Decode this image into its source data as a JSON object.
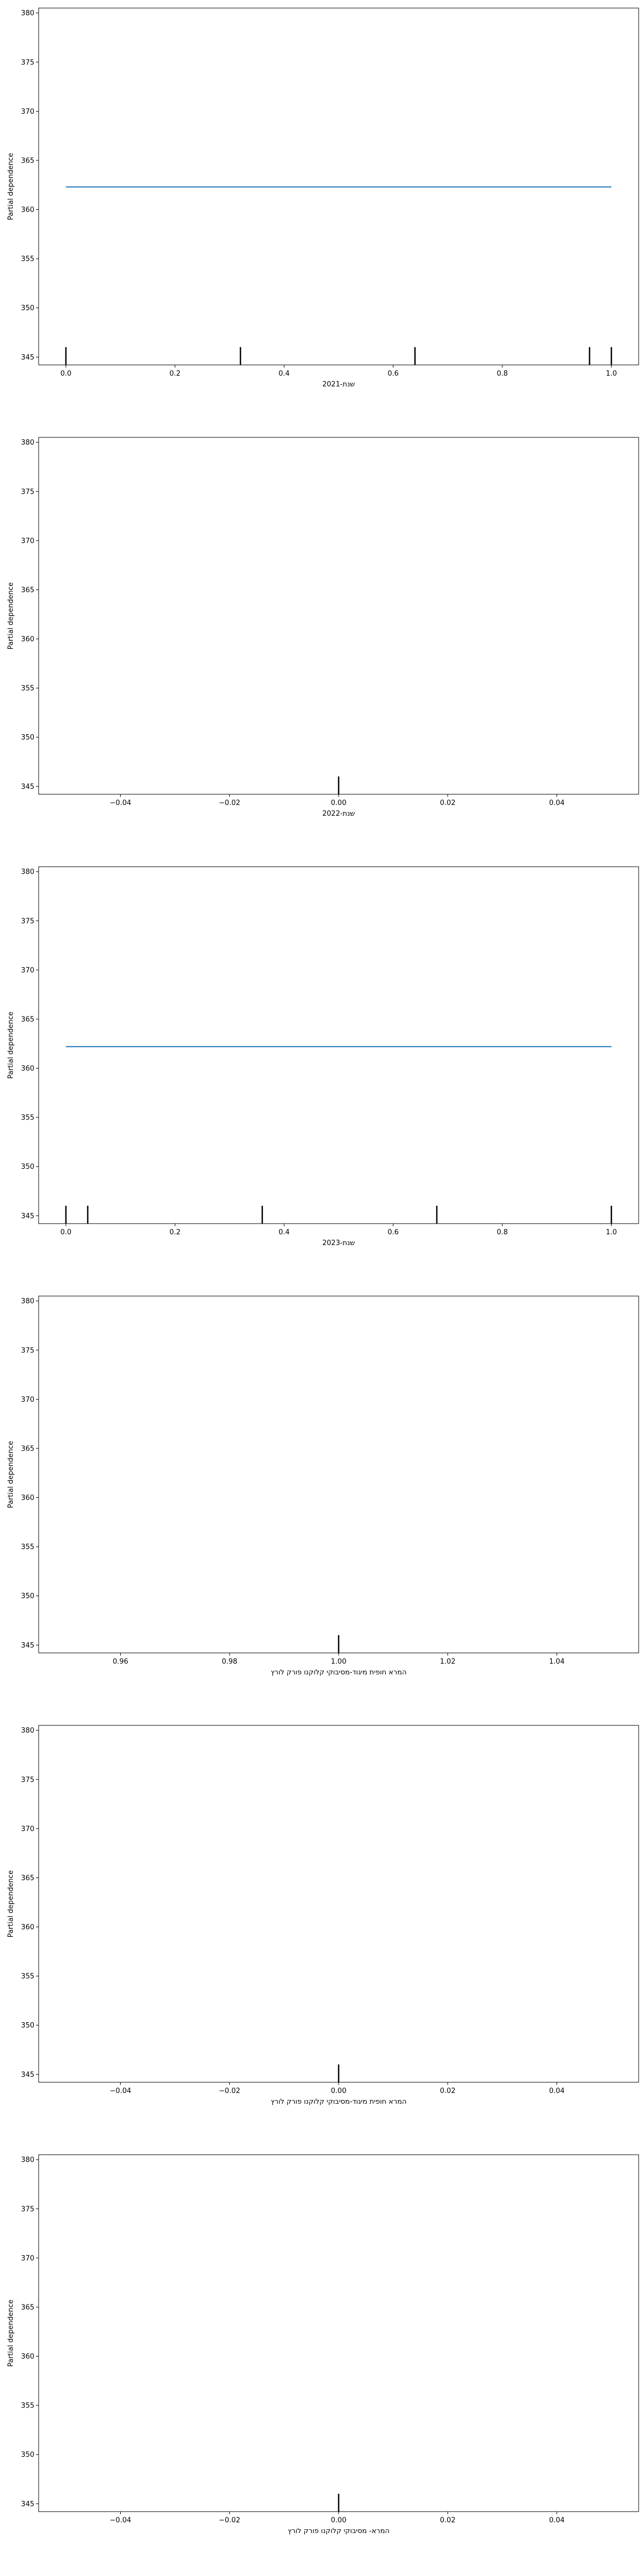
{
  "chart_data": [
    {
      "type": "line",
      "title": "",
      "xlabel": "שנת-2021",
      "ylabel": "Partial dependence",
      "xlim": [
        -0.05,
        1.05
      ],
      "ylim": [
        344.2,
        380.5
      ],
      "xticks": [
        0.0,
        0.2,
        0.4,
        0.6,
        0.8,
        1.0
      ],
      "xtick_labels": [
        "0.0",
        "0.2",
        "0.4",
        "0.6",
        "0.8",
        "1.0"
      ],
      "yticks": [
        345,
        350,
        355,
        360,
        365,
        370,
        375,
        380
      ],
      "ytick_labels": [
        "345",
        "350",
        "355",
        "360",
        "365",
        "370",
        "375",
        "380"
      ],
      "grid": false,
      "series": [
        {
          "x": [
            0.0,
            1.0
          ],
          "y": [
            362.3,
            362.3
          ],
          "color": "#1f77b4"
        }
      ],
      "rug": [
        0.0,
        0.32,
        0.64,
        0.96,
        1.0
      ]
    },
    {
      "type": "line",
      "title": "",
      "xlabel": "שנת-2022",
      "ylabel": "Partial dependence",
      "xlim": [
        -0.055,
        0.055
      ],
      "ylim": [
        344.2,
        380.5
      ],
      "xticks": [
        -0.04,
        -0.02,
        0.0,
        0.02,
        0.04
      ],
      "xtick_labels": [
        "−0.04",
        "−0.02",
        "0.00",
        "0.02",
        "0.04"
      ],
      "yticks": [
        345,
        350,
        355,
        360,
        365,
        370,
        375,
        380
      ],
      "ytick_labels": [
        "345",
        "350",
        "355",
        "360",
        "365",
        "370",
        "375",
        "380"
      ],
      "grid": false,
      "series": [],
      "rug": [
        0.0
      ]
    },
    {
      "type": "line",
      "title": "",
      "xlabel": "שנת-2023",
      "ylabel": "Partial dependence",
      "xlim": [
        -0.05,
        1.05
      ],
      "ylim": [
        344.2,
        380.5
      ],
      "xticks": [
        0.0,
        0.2,
        0.4,
        0.6,
        0.8,
        1.0
      ],
      "xtick_labels": [
        "0.0",
        "0.2",
        "0.4",
        "0.6",
        "0.8",
        "1.0"
      ],
      "yticks": [
        345,
        350,
        355,
        360,
        365,
        370,
        375,
        380
      ],
      "ytick_labels": [
        "345",
        "350",
        "355",
        "360",
        "365",
        "370",
        "375",
        "380"
      ],
      "grid": false,
      "series": [
        {
          "x": [
            0.0,
            1.0
          ],
          "y": [
            362.2,
            362.2
          ],
          "color": "#1f77b4"
        }
      ],
      "rug": [
        0.0,
        0.04,
        0.36,
        0.68,
        1.0
      ]
    },
    {
      "type": "line",
      "title": "",
      "xlabel": "המרא חופית מיגוד-מסיבוקי קלוקנו פורק לורץ",
      "ylabel": "Partial dependence",
      "xlim": [
        0.945,
        1.055
      ],
      "ylim": [
        344.2,
        380.5
      ],
      "xticks": [
        0.96,
        0.98,
        1.0,
        1.02,
        1.04
      ],
      "xtick_labels": [
        "0.96",
        "0.98",
        "1.00",
        "1.02",
        "1.04"
      ],
      "yticks": [
        345,
        350,
        355,
        360,
        365,
        370,
        375,
        380
      ],
      "ytick_labels": [
        "345",
        "350",
        "355",
        "360",
        "365",
        "370",
        "375",
        "380"
      ],
      "grid": false,
      "series": [],
      "rug": [
        1.0
      ]
    },
    {
      "type": "line",
      "title": "",
      "xlabel": "המרא חופית מיגוד-מסיבוקי קלוקנו פורק לורץ",
      "ylabel": "Partial dependence",
      "xlim": [
        -0.055,
        0.055
      ],
      "ylim": [
        344.2,
        380.5
      ],
      "xticks": [
        -0.04,
        -0.02,
        0.0,
        0.02,
        0.04
      ],
      "xtick_labels": [
        "−0.04",
        "−0.02",
        "0.00",
        "0.02",
        "0.04"
      ],
      "yticks": [
        345,
        350,
        355,
        360,
        365,
        370,
        375,
        380
      ],
      "ytick_labels": [
        "345",
        "350",
        "355",
        "360",
        "365",
        "370",
        "375",
        "380"
      ],
      "grid": false,
      "series": [],
      "rug": [
        0.0
      ]
    },
    {
      "type": "line",
      "title": "",
      "xlabel": "המרא- מסיבוקי קלוקנו פורק לורץ",
      "ylabel": "Partial dependence",
      "xlim": [
        -0.055,
        0.055
      ],
      "ylim": [
        344.2,
        380.5
      ],
      "xticks": [
        -0.04,
        -0.02,
        0.0,
        0.02,
        0.04
      ],
      "xtick_labels": [
        "−0.04",
        "−0.02",
        "0.00",
        "0.02",
        "0.04"
      ],
      "yticks": [
        345,
        350,
        355,
        360,
        365,
        370,
        375,
        380
      ],
      "ytick_labels": [
        "345",
        "350",
        "355",
        "360",
        "365",
        "370",
        "375",
        "380"
      ],
      "grid": false,
      "series": [],
      "rug": [
        0.0
      ]
    }
  ]
}
